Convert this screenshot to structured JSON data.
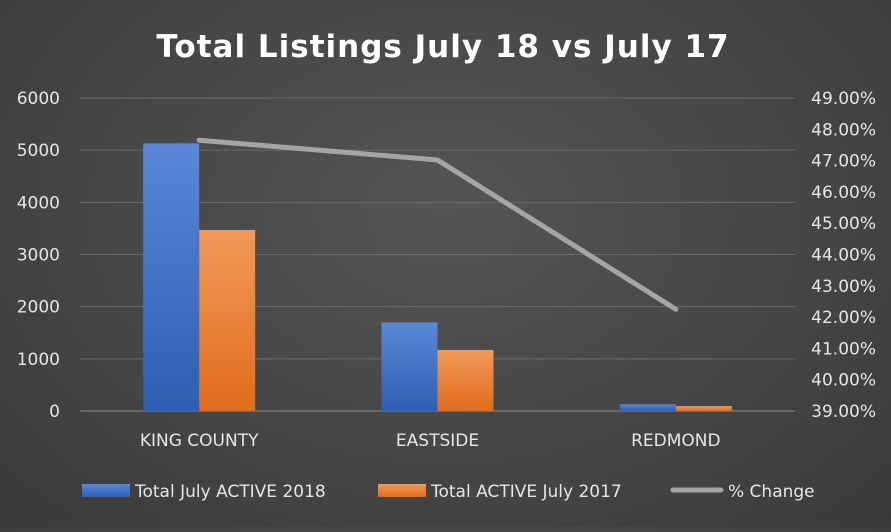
{
  "chart_data": {
    "type": "bar",
    "title": "Total Listings July 18 vs July 17",
    "categories": [
      "KING COUNTY",
      "EASTSIDE",
      "REDMOND"
    ],
    "series": [
      {
        "name": "Total July ACTIVE 2018",
        "type": "bar",
        "axis": "left",
        "color": "#4472c4",
        "values": [
          5130,
          1700,
          130
        ]
      },
      {
        "name": "Total ACTIVE July 2017",
        "type": "bar",
        "axis": "left",
        "color": "#ed7d31",
        "values": [
          3470,
          1170,
          95
        ]
      },
      {
        "name": "% Change",
        "type": "line",
        "axis": "right",
        "color": "#a5a5a5",
        "values": [
          0.4765,
          0.4702,
          0.4225
        ]
      }
    ],
    "ylim": [
      0,
      6000
    ],
    "yticks": [
      "0",
      "1000",
      "2000",
      "3000",
      "4000",
      "5000",
      "6000"
    ],
    "y2lim": [
      0.39,
      0.49
    ],
    "y2ticks": [
      "39.00%",
      "40.00%",
      "41.00%",
      "42.00%",
      "43.00%",
      "44.00%",
      "45.00%",
      "46.00%",
      "47.00%",
      "48.00%",
      "49.00%"
    ],
    "grid": true,
    "legend": "bottom"
  }
}
